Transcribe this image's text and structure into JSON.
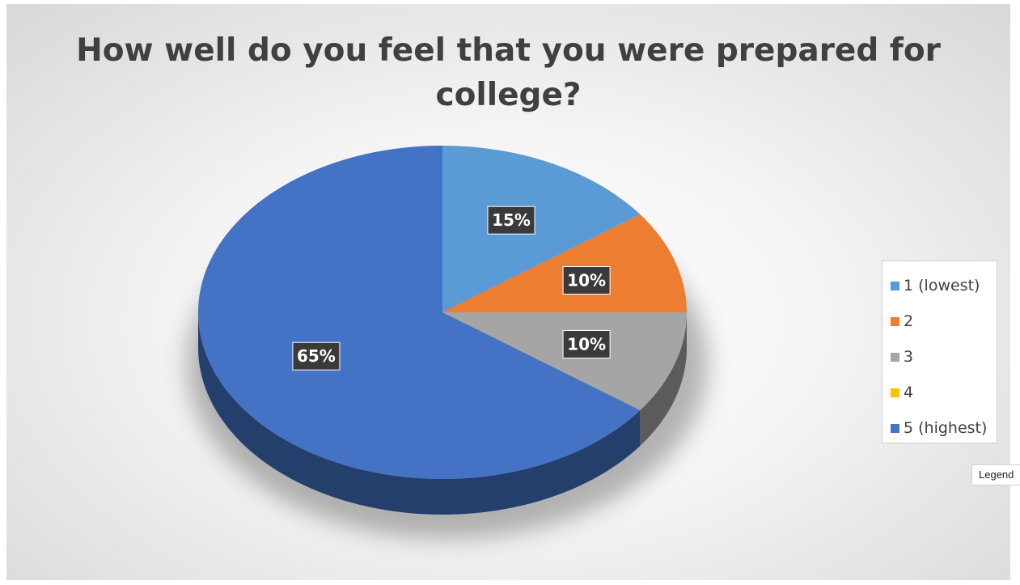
{
  "chart_data": {
    "type": "pie",
    "title_lines": [
      "How well do you feel that you were prepared for",
      "college?"
    ],
    "categories": [
      "1 (lowest)",
      "2",
      "3",
      "4",
      "5 (highest)"
    ],
    "values": [
      15,
      10,
      10,
      0,
      65
    ],
    "data_labels": [
      "15%",
      "10%",
      "10%",
      "",
      "65%"
    ],
    "colors": [
      "#5b9bd5",
      "#ed7d31",
      "#a5a5a5",
      "#ffc000",
      "#4472c4"
    ],
    "start_angle_deg": 0,
    "direction": "clockwise",
    "style": "3d",
    "legend_position": "right"
  },
  "tooltip": {
    "text": "Legend"
  }
}
